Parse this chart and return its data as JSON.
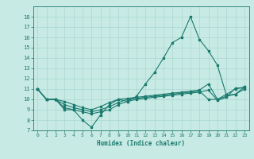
{
  "xlabel": "Humidex (Indice chaleur)",
  "xlim": [
    -0.5,
    23.5
  ],
  "ylim": [
    7,
    19
  ],
  "yticks": [
    7,
    8,
    9,
    10,
    11,
    12,
    13,
    14,
    15,
    16,
    17,
    18
  ],
  "xticks": [
    0,
    1,
    2,
    3,
    4,
    5,
    6,
    7,
    8,
    9,
    10,
    11,
    12,
    13,
    14,
    15,
    16,
    17,
    18,
    19,
    20,
    21,
    22,
    23
  ],
  "bg_color": "#c8eae4",
  "line_color": "#1a7a6e",
  "grid_color": "#a8d8d0",
  "lines": [
    {
      "x": [
        0,
        1,
        2,
        3,
        4,
        5,
        6,
        7,
        8,
        9,
        10,
        11,
        12,
        13,
        14,
        15,
        16,
        17,
        18,
        19,
        20,
        21,
        22,
        23
      ],
      "y": [
        11,
        10,
        10,
        9,
        9,
        8,
        7.3,
        8.5,
        9.5,
        10,
        9.8,
        10.3,
        11.5,
        12.6,
        14,
        15.5,
        16,
        18,
        15.8,
        14.7,
        13.3,
        10.4,
        10.5,
        11.2
      ]
    },
    {
      "x": [
        0,
        1,
        2,
        3,
        4,
        5,
        6,
        7,
        8,
        9,
        10,
        11,
        12,
        13,
        14,
        15,
        16,
        17,
        18,
        19,
        20,
        21,
        22,
        23
      ],
      "y": [
        11,
        10,
        10,
        9.8,
        9.5,
        9.2,
        9.0,
        9.3,
        9.7,
        10,
        10.1,
        10.2,
        10.3,
        10.4,
        10.5,
        10.6,
        10.7,
        10.8,
        10.9,
        11.5,
        10.0,
        10.3,
        10.5,
        11.0
      ]
    },
    {
      "x": [
        0,
        1,
        2,
        3,
        4,
        5,
        6,
        7,
        8,
        9,
        10,
        11,
        12,
        13,
        14,
        15,
        16,
        17,
        18,
        19,
        20,
        21,
        22,
        23
      ],
      "y": [
        11,
        10,
        10,
        9.5,
        9.2,
        9.0,
        8.8,
        9.0,
        9.3,
        9.7,
        10,
        10.1,
        10.2,
        10.3,
        10.4,
        10.5,
        10.6,
        10.7,
        10.8,
        10.0,
        10.0,
        10.5,
        11.0,
        11.2
      ]
    },
    {
      "x": [
        0,
        1,
        2,
        3,
        4,
        5,
        6,
        7,
        8,
        9,
        10,
        11,
        12,
        13,
        14,
        15,
        16,
        17,
        18,
        19,
        20,
        21,
        22,
        23
      ],
      "y": [
        11,
        10,
        10,
        9.2,
        9.0,
        8.8,
        8.6,
        8.8,
        9.0,
        9.5,
        9.8,
        10.0,
        10.1,
        10.2,
        10.3,
        10.4,
        10.5,
        10.6,
        10.7,
        10.9,
        9.9,
        10.2,
        11.1,
        11.1
      ]
    }
  ]
}
